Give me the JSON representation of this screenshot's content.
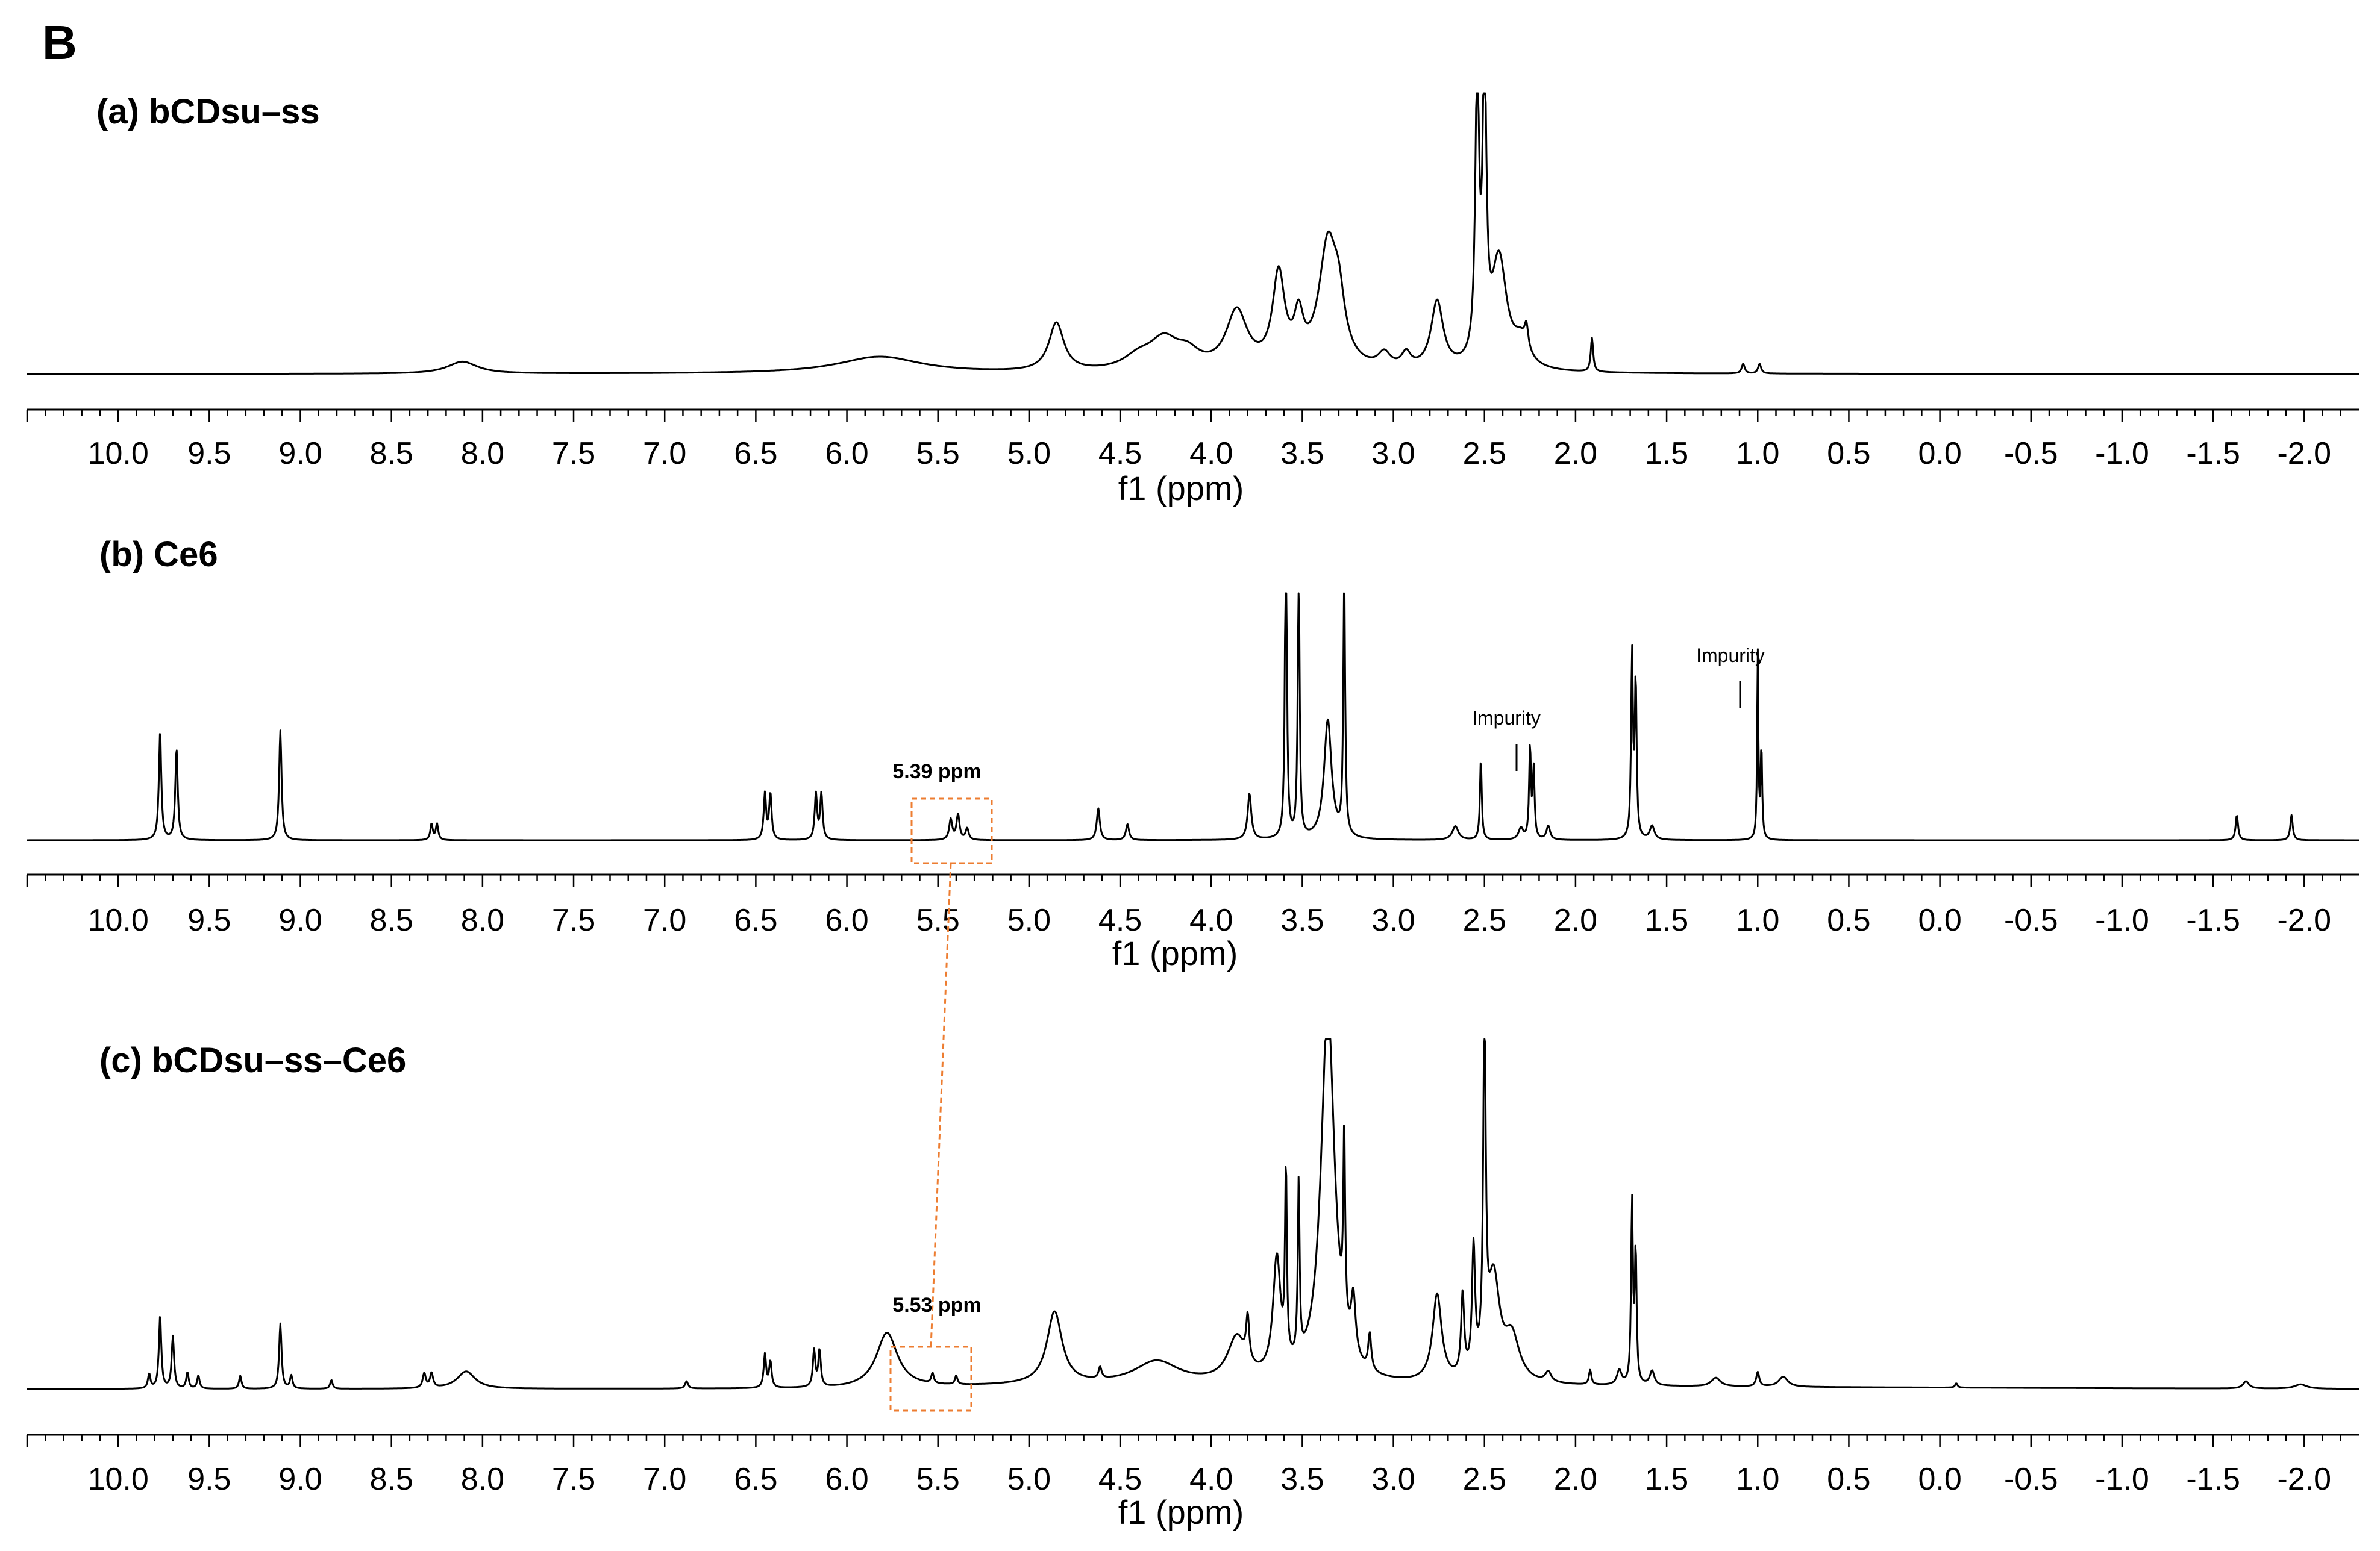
{
  "figure_label": "B",
  "colors": {
    "spectrum": "#000000",
    "highlight": "#ED7D31"
  },
  "chart_data": [
    {
      "type": "line",
      "title": "(a) bCDsu–ss",
      "xlabel": "f1 (ppm)",
      "xlim": [
        10.5,
        -2.3
      ],
      "x_reversed": true,
      "ticks": [
        "10.0",
        "9.5",
        "9.0",
        "8.5",
        "8.0",
        "7.5",
        "7.0",
        "6.5",
        "6.0",
        "5.5",
        "5.0",
        "4.5",
        "4.0",
        "3.5",
        "3.0",
        "2.5",
        "2.0",
        "1.5",
        "1.0",
        "0.5",
        "0.0",
        "-0.5",
        "-1.0",
        "-1.5",
        "-2.0"
      ],
      "baseline_ppm": [
        [
          10.5,
          0.0
        ],
        [
          -2.3,
          0.0
        ]
      ],
      "peaks": [
        {
          "ppm": 8.11,
          "height": 0.05,
          "width": 0.1
        },
        {
          "ppm": 5.82,
          "height": 0.07,
          "width": 0.28
        },
        {
          "ppm": 4.85,
          "height": 0.2,
          "width": 0.05
        },
        {
          "ppm": 4.4,
          "height": 0.05,
          "width": 0.1
        },
        {
          "ppm": 4.26,
          "height": 0.12,
          "width": 0.1
        },
        {
          "ppm": 4.13,
          "height": 0.06,
          "width": 0.08
        },
        {
          "ppm": 3.86,
          "height": 0.24,
          "width": 0.07
        },
        {
          "ppm": 3.63,
          "height": 0.38,
          "width": 0.04
        },
        {
          "ppm": 3.52,
          "height": 0.18,
          "width": 0.03
        },
        {
          "ppm": 3.36,
          "height": 0.5,
          "width": 0.06
        },
        {
          "ppm": 3.3,
          "height": 0.2,
          "width": 0.04
        },
        {
          "ppm": 3.05,
          "height": 0.06,
          "width": 0.04
        },
        {
          "ppm": 2.93,
          "height": 0.06,
          "width": 0.03
        },
        {
          "ppm": 2.76,
          "height": 0.28,
          "width": 0.04
        },
        {
          "ppm": 2.54,
          "height": 1.2,
          "width": 0.012
        },
        {
          "ppm": 2.5,
          "height": 1.2,
          "width": 0.012
        },
        {
          "ppm": 2.42,
          "height": 0.45,
          "width": 0.05
        },
        {
          "ppm": 2.3,
          "height": 0.1,
          "width": 0.05
        },
        {
          "ppm": 2.27,
          "height": 0.09,
          "width": 0.012
        },
        {
          "ppm": 1.91,
          "height": 0.14,
          "width": 0.008
        },
        {
          "ppm": 1.08,
          "height": 0.04,
          "width": 0.01
        },
        {
          "ppm": 0.99,
          "height": 0.04,
          "width": 0.01
        }
      ],
      "annotations": []
    },
    {
      "type": "line",
      "title": "(b) Ce6",
      "xlabel": "f1 (ppm)",
      "xlim": [
        10.5,
        -2.3
      ],
      "x_reversed": true,
      "ticks": [
        "10.0",
        "9.5",
        "9.0",
        "8.5",
        "8.0",
        "7.5",
        "7.0",
        "6.5",
        "6.0",
        "5.5",
        "5.0",
        "4.5",
        "4.0",
        "3.5",
        "3.0",
        "2.5",
        "2.0",
        "1.5",
        "1.0",
        "0.5",
        "0.0",
        "-0.5",
        "-1.0",
        "-1.5",
        "-2.0"
      ],
      "baseline_ppm": [
        [
          10.5,
          0.0
        ],
        [
          -2.3,
          0.0
        ]
      ],
      "peaks": [
        {
          "ppm": 9.77,
          "height": 0.47,
          "width": 0.008
        },
        {
          "ppm": 9.68,
          "height": 0.4,
          "width": 0.008
        },
        {
          "ppm": 9.11,
          "height": 0.48,
          "width": 0.008
        },
        {
          "ppm": 8.28,
          "height": 0.07,
          "width": 0.008
        },
        {
          "ppm": 8.25,
          "height": 0.07,
          "width": 0.008
        },
        {
          "ppm": 6.45,
          "height": 0.2,
          "width": 0.008
        },
        {
          "ppm": 6.42,
          "height": 0.2,
          "width": 0.008
        },
        {
          "ppm": 6.17,
          "height": 0.2,
          "width": 0.008
        },
        {
          "ppm": 6.14,
          "height": 0.2,
          "width": 0.008
        },
        {
          "ppm": 5.43,
          "height": 0.09,
          "width": 0.01
        },
        {
          "ppm": 5.39,
          "height": 0.11,
          "width": 0.01
        },
        {
          "ppm": 5.34,
          "height": 0.05,
          "width": 0.01
        },
        {
          "ppm": 4.62,
          "height": 0.14,
          "width": 0.01
        },
        {
          "ppm": 4.46,
          "height": 0.07,
          "width": 0.01
        },
        {
          "ppm": 3.79,
          "height": 0.2,
          "width": 0.012
        },
        {
          "ppm": 3.59,
          "height": 1.5,
          "width": 0.006
        },
        {
          "ppm": 3.52,
          "height": 1.22,
          "width": 0.006
        },
        {
          "ppm": 3.36,
          "height": 0.52,
          "width": 0.025
        },
        {
          "ppm": 3.27,
          "height": 1.15,
          "width": 0.006
        },
        {
          "ppm": 2.66,
          "height": 0.06,
          "width": 0.02
        },
        {
          "ppm": 2.52,
          "height": 0.35,
          "width": 0.006
        },
        {
          "ppm": 2.3,
          "height": 0.05,
          "width": 0.015
        },
        {
          "ppm": 2.25,
          "height": 0.4,
          "width": 0.006
        },
        {
          "ppm": 2.23,
          "height": 0.3,
          "width": 0.006
        },
        {
          "ppm": 2.15,
          "height": 0.06,
          "width": 0.012
        },
        {
          "ppm": 1.69,
          "height": 0.8,
          "width": 0.006
        },
        {
          "ppm": 1.67,
          "height": 0.68,
          "width": 0.006
        },
        {
          "ppm": 1.58,
          "height": 0.06,
          "width": 0.015
        },
        {
          "ppm": 1.0,
          "height": 0.82,
          "width": 0.004
        },
        {
          "ppm": 0.98,
          "height": 0.4,
          "width": 0.005
        },
        {
          "ppm": -1.63,
          "height": 0.11,
          "width": 0.008
        },
        {
          "ppm": -1.93,
          "height": 0.11,
          "width": 0.008
        }
      ],
      "annotations": [
        {
          "text": "Impurity",
          "ppm": 2.25
        },
        {
          "text": "Impurity",
          "ppm": 1.0
        },
        {
          "text": "5.39 ppm",
          "ppm": 5.39
        }
      ]
    },
    {
      "type": "line",
      "title": "(c) bCDsu–ss–Ce6",
      "xlabel": "f1 (ppm)",
      "xlim": [
        10.5,
        -2.3
      ],
      "x_reversed": true,
      "ticks": [
        "10.0",
        "9.5",
        "9.0",
        "8.5",
        "8.0",
        "7.5",
        "7.0",
        "6.5",
        "6.0",
        "5.5",
        "5.0",
        "4.5",
        "4.0",
        "3.5",
        "3.0",
        "2.5",
        "2.0",
        "1.5",
        "1.0",
        "0.5",
        "0.0",
        "-0.5",
        "-1.0",
        "-1.5",
        "-2.0"
      ],
      "baseline_ppm": [
        [
          10.5,
          0.0
        ],
        [
          6.0,
          0.0
        ],
        [
          5.0,
          0.02
        ],
        [
          3.0,
          0.02
        ],
        [
          -2.3,
          0.0
        ]
      ],
      "peaks": [
        {
          "ppm": 9.83,
          "height": 0.1,
          "width": 0.008
        },
        {
          "ppm": 9.77,
          "height": 0.5,
          "width": 0.008
        },
        {
          "ppm": 9.7,
          "height": 0.36,
          "width": 0.008
        },
        {
          "ppm": 9.62,
          "height": 0.11,
          "width": 0.008
        },
        {
          "ppm": 9.56,
          "height": 0.09,
          "width": 0.008
        },
        {
          "ppm": 9.33,
          "height": 0.09,
          "width": 0.008
        },
        {
          "ppm": 9.11,
          "height": 0.45,
          "width": 0.008
        },
        {
          "ppm": 9.05,
          "height": 0.09,
          "width": 0.008
        },
        {
          "ppm": 8.83,
          "height": 0.06,
          "width": 0.008
        },
        {
          "ppm": 8.32,
          "height": 0.1,
          "width": 0.01
        },
        {
          "ppm": 8.28,
          "height": 0.1,
          "width": 0.01
        },
        {
          "ppm": 8.09,
          "height": 0.12,
          "width": 0.06
        },
        {
          "ppm": 6.88,
          "height": 0.05,
          "width": 0.01
        },
        {
          "ppm": 6.45,
          "height": 0.23,
          "width": 0.008
        },
        {
          "ppm": 6.42,
          "height": 0.18,
          "width": 0.008
        },
        {
          "ppm": 6.18,
          "height": 0.25,
          "width": 0.008
        },
        {
          "ppm": 6.15,
          "height": 0.25,
          "width": 0.008
        },
        {
          "ppm": 5.78,
          "height": 0.38,
          "width": 0.07
        },
        {
          "ppm": 5.53,
          "height": 0.07,
          "width": 0.008
        },
        {
          "ppm": 5.4,
          "height": 0.06,
          "width": 0.008
        },
        {
          "ppm": 4.86,
          "height": 0.5,
          "width": 0.05
        },
        {
          "ppm": 4.61,
          "height": 0.08,
          "width": 0.01
        },
        {
          "ppm": 4.3,
          "height": 0.16,
          "width": 0.15
        },
        {
          "ppm": 3.86,
          "height": 0.3,
          "width": 0.06
        },
        {
          "ppm": 3.8,
          "height": 0.3,
          "width": 0.01
        },
        {
          "ppm": 3.64,
          "height": 0.8,
          "width": 0.025
        },
        {
          "ppm": 3.59,
          "height": 1.3,
          "width": 0.006
        },
        {
          "ppm": 3.52,
          "height": 1.2,
          "width": 0.006
        },
        {
          "ppm": 3.36,
          "height": 2.6,
          "width": 0.045
        },
        {
          "ppm": 3.27,
          "height": 1.3,
          "width": 0.006
        },
        {
          "ppm": 3.22,
          "height": 0.4,
          "width": 0.015
        },
        {
          "ppm": 3.13,
          "height": 0.25,
          "width": 0.01
        },
        {
          "ppm": 2.76,
          "height": 0.6,
          "width": 0.03
        },
        {
          "ppm": 2.62,
          "height": 0.55,
          "width": 0.01
        },
        {
          "ppm": 2.56,
          "height": 0.85,
          "width": 0.01
        },
        {
          "ppm": 2.5,
          "height": 2.4,
          "width": 0.008
        },
        {
          "ppm": 2.45,
          "height": 0.7,
          "width": 0.04
        },
        {
          "ppm": 2.35,
          "height": 0.3,
          "width": 0.05
        },
        {
          "ppm": 2.15,
          "height": 0.07,
          "width": 0.02
        },
        {
          "ppm": 1.92,
          "height": 0.1,
          "width": 0.008
        },
        {
          "ppm": 1.76,
          "height": 0.1,
          "width": 0.015
        },
        {
          "ppm": 1.69,
          "height": 1.25,
          "width": 0.006
        },
        {
          "ppm": 1.67,
          "height": 0.9,
          "width": 0.006
        },
        {
          "ppm": 1.58,
          "height": 0.1,
          "width": 0.015
        },
        {
          "ppm": 1.23,
          "height": 0.06,
          "width": 0.03
        },
        {
          "ppm": 1.0,
          "height": 0.1,
          "width": 0.01
        },
        {
          "ppm": 0.86,
          "height": 0.07,
          "width": 0.03
        },
        {
          "ppm": -0.09,
          "height": 0.03,
          "width": 0.008
        },
        {
          "ppm": -1.68,
          "height": 0.05,
          "width": 0.02
        },
        {
          "ppm": -1.98,
          "height": 0.03,
          "width": 0.04
        }
      ],
      "annotations": [
        {
          "text": "5.53 ppm",
          "ppm": 5.53
        }
      ]
    }
  ]
}
